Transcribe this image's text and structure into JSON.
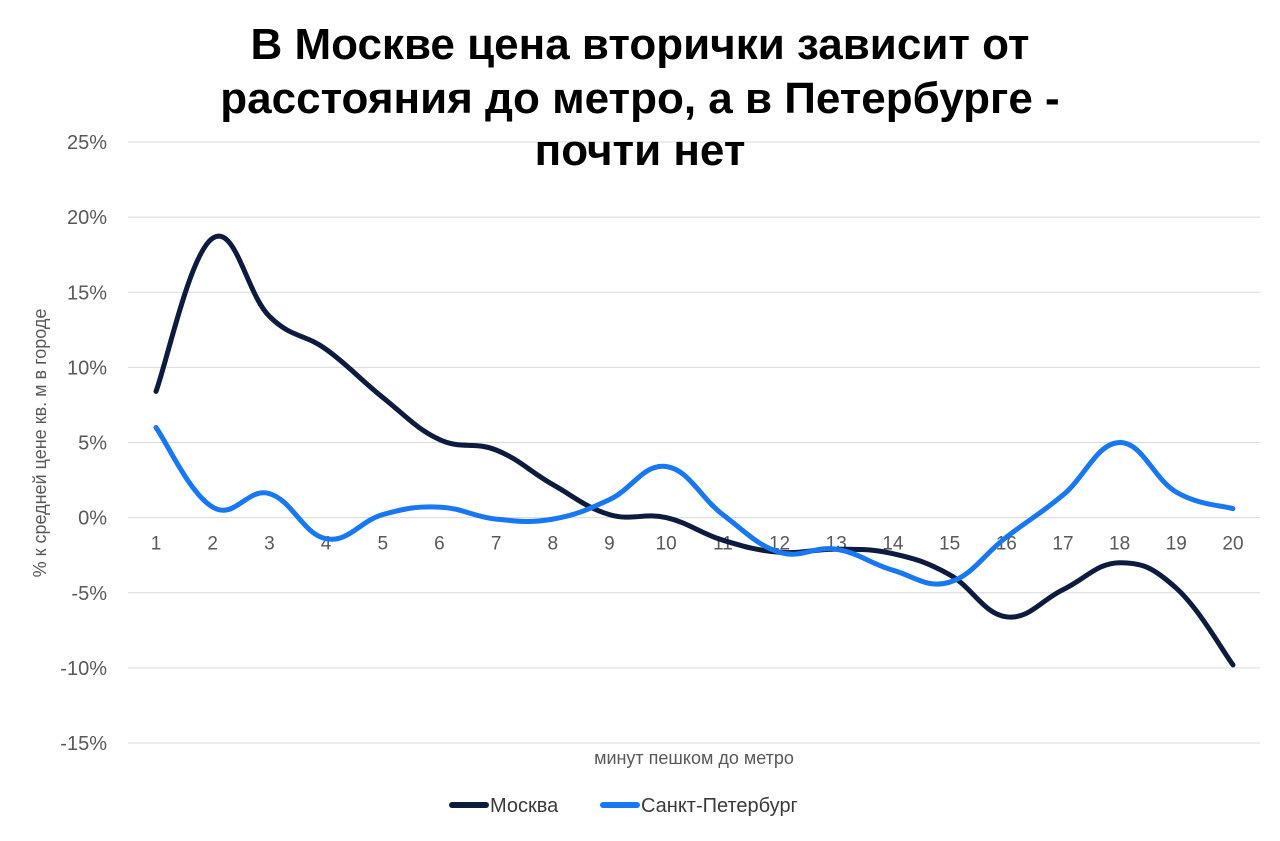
{
  "chart_data": {
    "type": "line",
    "title_lines": [
      "В Москве цена вторички зависит от",
      "расстояния до метро, а в Петербурге -",
      "почти нет"
    ],
    "xlabel": "минут пешком до метро",
    "ylabel": "% к средней цене кв. м в городе",
    "categories": [
      "1",
      "2",
      "3",
      "4",
      "5",
      "6",
      "7",
      "8",
      "9",
      "10",
      "11",
      "12",
      "13",
      "14",
      "15",
      "16",
      "17",
      "18",
      "19",
      "20"
    ],
    "ylim": [
      -15,
      25
    ],
    "yticks": [
      25,
      20,
      15,
      10,
      5,
      0,
      -5,
      -10,
      -15
    ],
    "ytick_labels": [
      "25%",
      "20%",
      "15%",
      "10%",
      "5%",
      "0%",
      "-5%",
      "-10%",
      "-15%"
    ],
    "grid": true,
    "legend_position": "bottom",
    "series": [
      {
        "name": "Москва",
        "color": "#0d1b3e",
        "values": [
          8.4,
          18.6,
          13.4,
          11.2,
          8.0,
          5.2,
          4.5,
          2.2,
          0.2,
          0.0,
          -1.5,
          -2.3,
          -2.1,
          -2.4,
          -3.8,
          -6.6,
          -4.8,
          -3.0,
          -4.7,
          -9.8
        ]
      },
      {
        "name": "Санкт-Петербург",
        "color": "#1877f2",
        "values": [
          6.0,
          0.7,
          1.6,
          -1.4,
          0.2,
          0.7,
          -0.1,
          -0.1,
          1.2,
          3.4,
          0.2,
          -2.3,
          -2.1,
          -3.5,
          -4.3,
          -1.3,
          1.5,
          5.0,
          1.7,
          0.6
        ]
      }
    ]
  }
}
